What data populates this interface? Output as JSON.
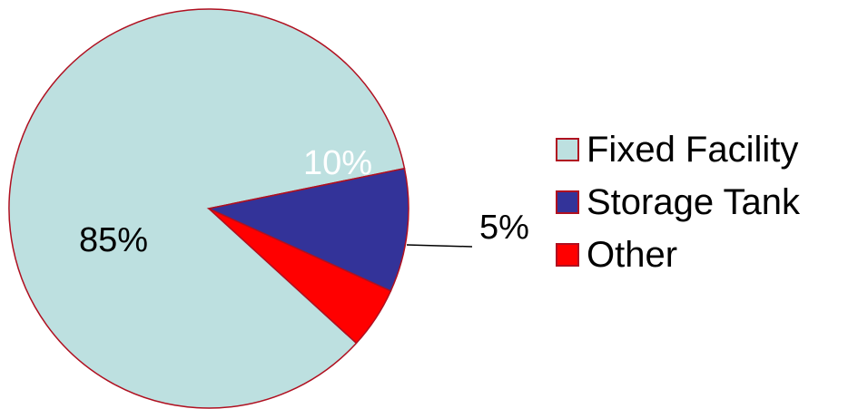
{
  "chart_data": {
    "type": "pie",
    "slices": [
      {
        "label": "Fixed Facility",
        "value": 85,
        "data_label": "85%",
        "color": "#bde0e0",
        "label_color": "#000000"
      },
      {
        "label": "Storage Tank",
        "value": 10,
        "data_label": "10%",
        "color": "#333399",
        "label_color": "#ffffff"
      },
      {
        "label": "Other",
        "value": 5,
        "data_label": "5%",
        "color": "#ff0000",
        "label_color": "#000000"
      }
    ],
    "edge_color": "#b01020",
    "legend_position": "right"
  }
}
